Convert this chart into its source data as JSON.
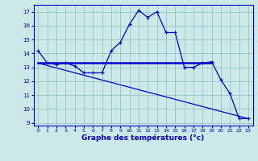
{
  "line1_x": [
    0,
    1,
    2,
    3,
    4,
    5,
    6,
    7,
    8,
    9,
    10,
    11,
    12,
    13,
    14,
    15,
    16,
    17,
    18,
    19,
    20,
    21,
    22,
    23
  ],
  "line1_y": [
    14.2,
    13.3,
    13.2,
    13.3,
    13.1,
    12.6,
    12.6,
    12.6,
    14.2,
    14.8,
    16.1,
    17.1,
    16.6,
    17.0,
    15.5,
    15.5,
    13.0,
    13.0,
    13.3,
    13.4,
    12.1,
    11.1,
    9.3,
    9.3
  ],
  "line2_x": [
    0,
    19
  ],
  "line2_y": [
    13.3,
    13.3
  ],
  "line3_x": [
    0,
    23
  ],
  "line3_y": [
    13.3,
    9.3
  ],
  "line_color": "#0000cc",
  "bg_color": "#cce8e8",
  "grid_color": "#99cccc",
  "xlabel": "Graphe des températures (°c)",
  "xlim": [
    -0.5,
    23.5
  ],
  "ylim": [
    8.8,
    17.5
  ],
  "yticks": [
    9,
    10,
    11,
    12,
    13,
    14,
    15,
    16,
    17
  ],
  "xticks": [
    0,
    1,
    2,
    3,
    4,
    5,
    6,
    7,
    8,
    9,
    10,
    11,
    12,
    13,
    14,
    15,
    16,
    17,
    18,
    19,
    20,
    21,
    22,
    23
  ]
}
